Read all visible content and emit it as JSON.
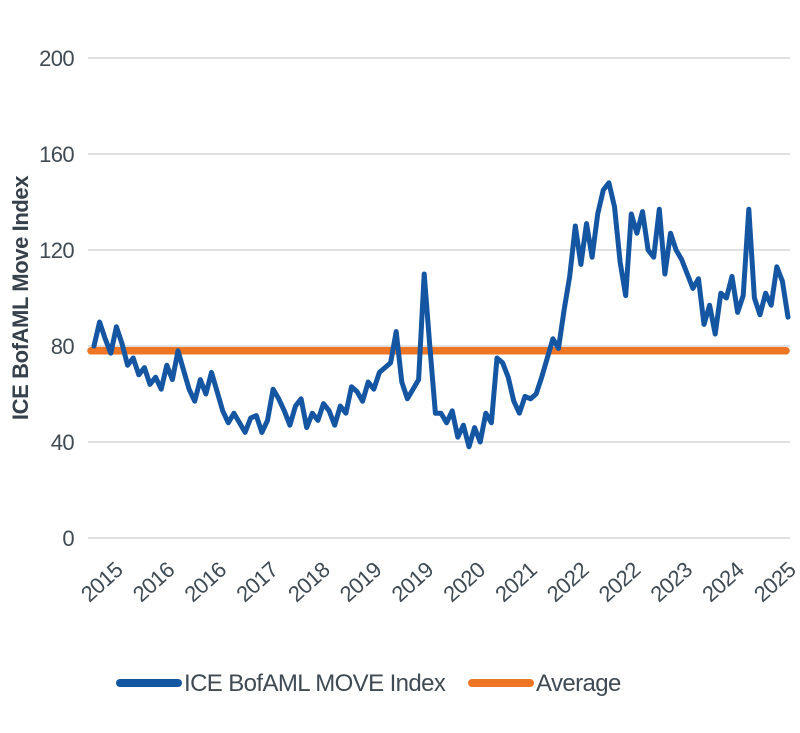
{
  "chart_data": {
    "type": "line",
    "title": "",
    "xlabel": "",
    "ylabel": "ICE BofAML Move Index",
    "ylim": [
      0,
      200
    ],
    "y_ticks": [
      200,
      160,
      120,
      80,
      40,
      0
    ],
    "x_tick_labels": [
      "2015",
      "2016",
      "2016",
      "2017",
      "2018",
      "2019",
      "2019",
      "2020",
      "2021",
      "2022",
      "2022",
      "2023",
      "2024",
      "2025"
    ],
    "x_range_years": [
      2015.0,
      2025.33
    ],
    "grid": "horizontal-only",
    "legend_position": "bottom-center",
    "series": [
      {
        "name": "ICE BofAML MOVE Index",
        "color": "#1556A3",
        "note": "approx monthly values Jan 2015 - May 2025, read from plot",
        "values": [
          80,
          90,
          83,
          77,
          88,
          81,
          72,
          75,
          68,
          71,
          64,
          67,
          62,
          72,
          66,
          78,
          70,
          62,
          57,
          66,
          60,
          69,
          61,
          53,
          48,
          52,
          48,
          44,
          50,
          51,
          44,
          49,
          62,
          58,
          53,
          47,
          55,
          58,
          46,
          52,
          49,
          56,
          53,
          47,
          55,
          52,
          63,
          61,
          57,
          65,
          62,
          69,
          71,
          73,
          86,
          65,
          58,
          62,
          66,
          110,
          80,
          52,
          52,
          48,
          53,
          42,
          47,
          38,
          46,
          40,
          52,
          48,
          75,
          73,
          67,
          57,
          52,
          59,
          58,
          60,
          67,
          75,
          83,
          79,
          95,
          109,
          130,
          114,
          131,
          117,
          135,
          145,
          148,
          138,
          115,
          101,
          135,
          127,
          136,
          120,
          117,
          137,
          110,
          127,
          120,
          116,
          110,
          104,
          108,
          89,
          97,
          85,
          102,
          100,
          109,
          94,
          101,
          137,
          100,
          93,
          102,
          97,
          113,
          107,
          92
        ]
      },
      {
        "name": "Average",
        "color": "#EE7524",
        "value": 78
      }
    ],
    "grid_color": "#D5D7D9",
    "text_color": "#3F4A53"
  }
}
